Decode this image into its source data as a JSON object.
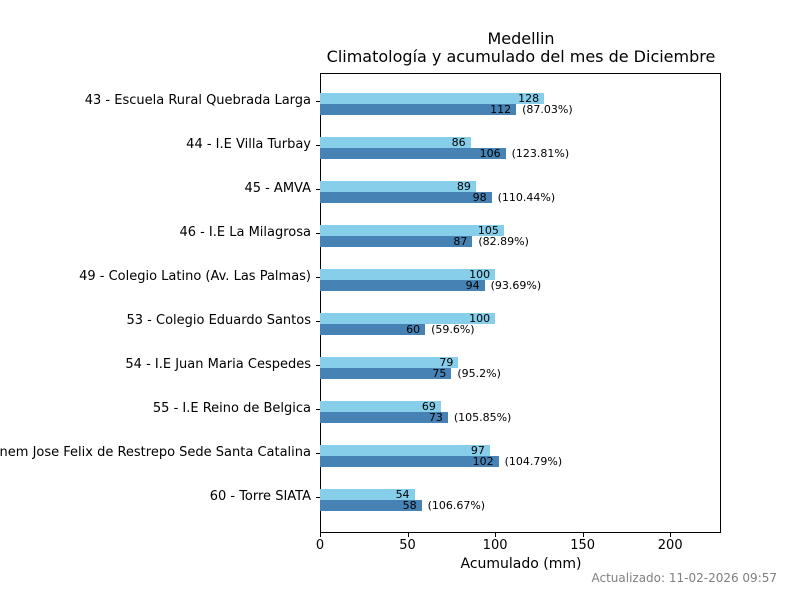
{
  "title": {
    "line1": "Medellin",
    "line2": "Climatología y acumulado del mes de Diciembre"
  },
  "chart_data": {
    "type": "bar",
    "orientation": "horizontal",
    "title": "Medellin",
    "subtitle": "Climatología y acumulado del mes de Diciembre",
    "xlabel": "Acumulado (mm)",
    "xlim": [
      0,
      229
    ],
    "xticks": [
      0,
      50,
      100,
      150,
      200
    ],
    "grid": false,
    "legend_position": "none",
    "categories": [
      "43 - Escuela Rural Quebrada Larga",
      "44 - I.E Villa Turbay",
      "45 - AMVA",
      "46 - I.E La Milagrosa",
      "49 - Colegio Latino (Av. Las Palmas)",
      "53 - Colegio Eduardo Santos",
      "54 - I.E Juan Maria Cespedes",
      "55 - I.E Reino de Belgica",
      "Inem Jose Felix de Restrepo Sede Santa Catalina",
      "60 - Torre SIATA"
    ],
    "series": [
      {
        "name": "Climatología",
        "color": "#87CEEB",
        "values": [
          128,
          86,
          89,
          105,
          100,
          100,
          79,
          69,
          97,
          54
        ]
      },
      {
        "name": "Acumulado",
        "color": "#4682B4",
        "values": [
          112,
          106,
          98,
          87,
          94,
          60,
          75,
          73,
          102,
          58
        ]
      }
    ],
    "percent_labels": [
      "(87.03%)",
      "(123.81%)",
      "(110.44%)",
      "(82.89%)",
      "(93.69%)",
      "(59.6%)",
      "(95.2%)",
      "(105.85%)",
      "(104.79%)",
      "(106.67%)"
    ]
  },
  "footer": {
    "updated": "Actualizado: 11-02-2026 09:57",
    "color": "#7f7f7f"
  },
  "colors": {
    "climatologia_bar": "#87CEEB",
    "acumulado_bar": "#4682B4",
    "axis": "#000000",
    "text": "#000000"
  }
}
